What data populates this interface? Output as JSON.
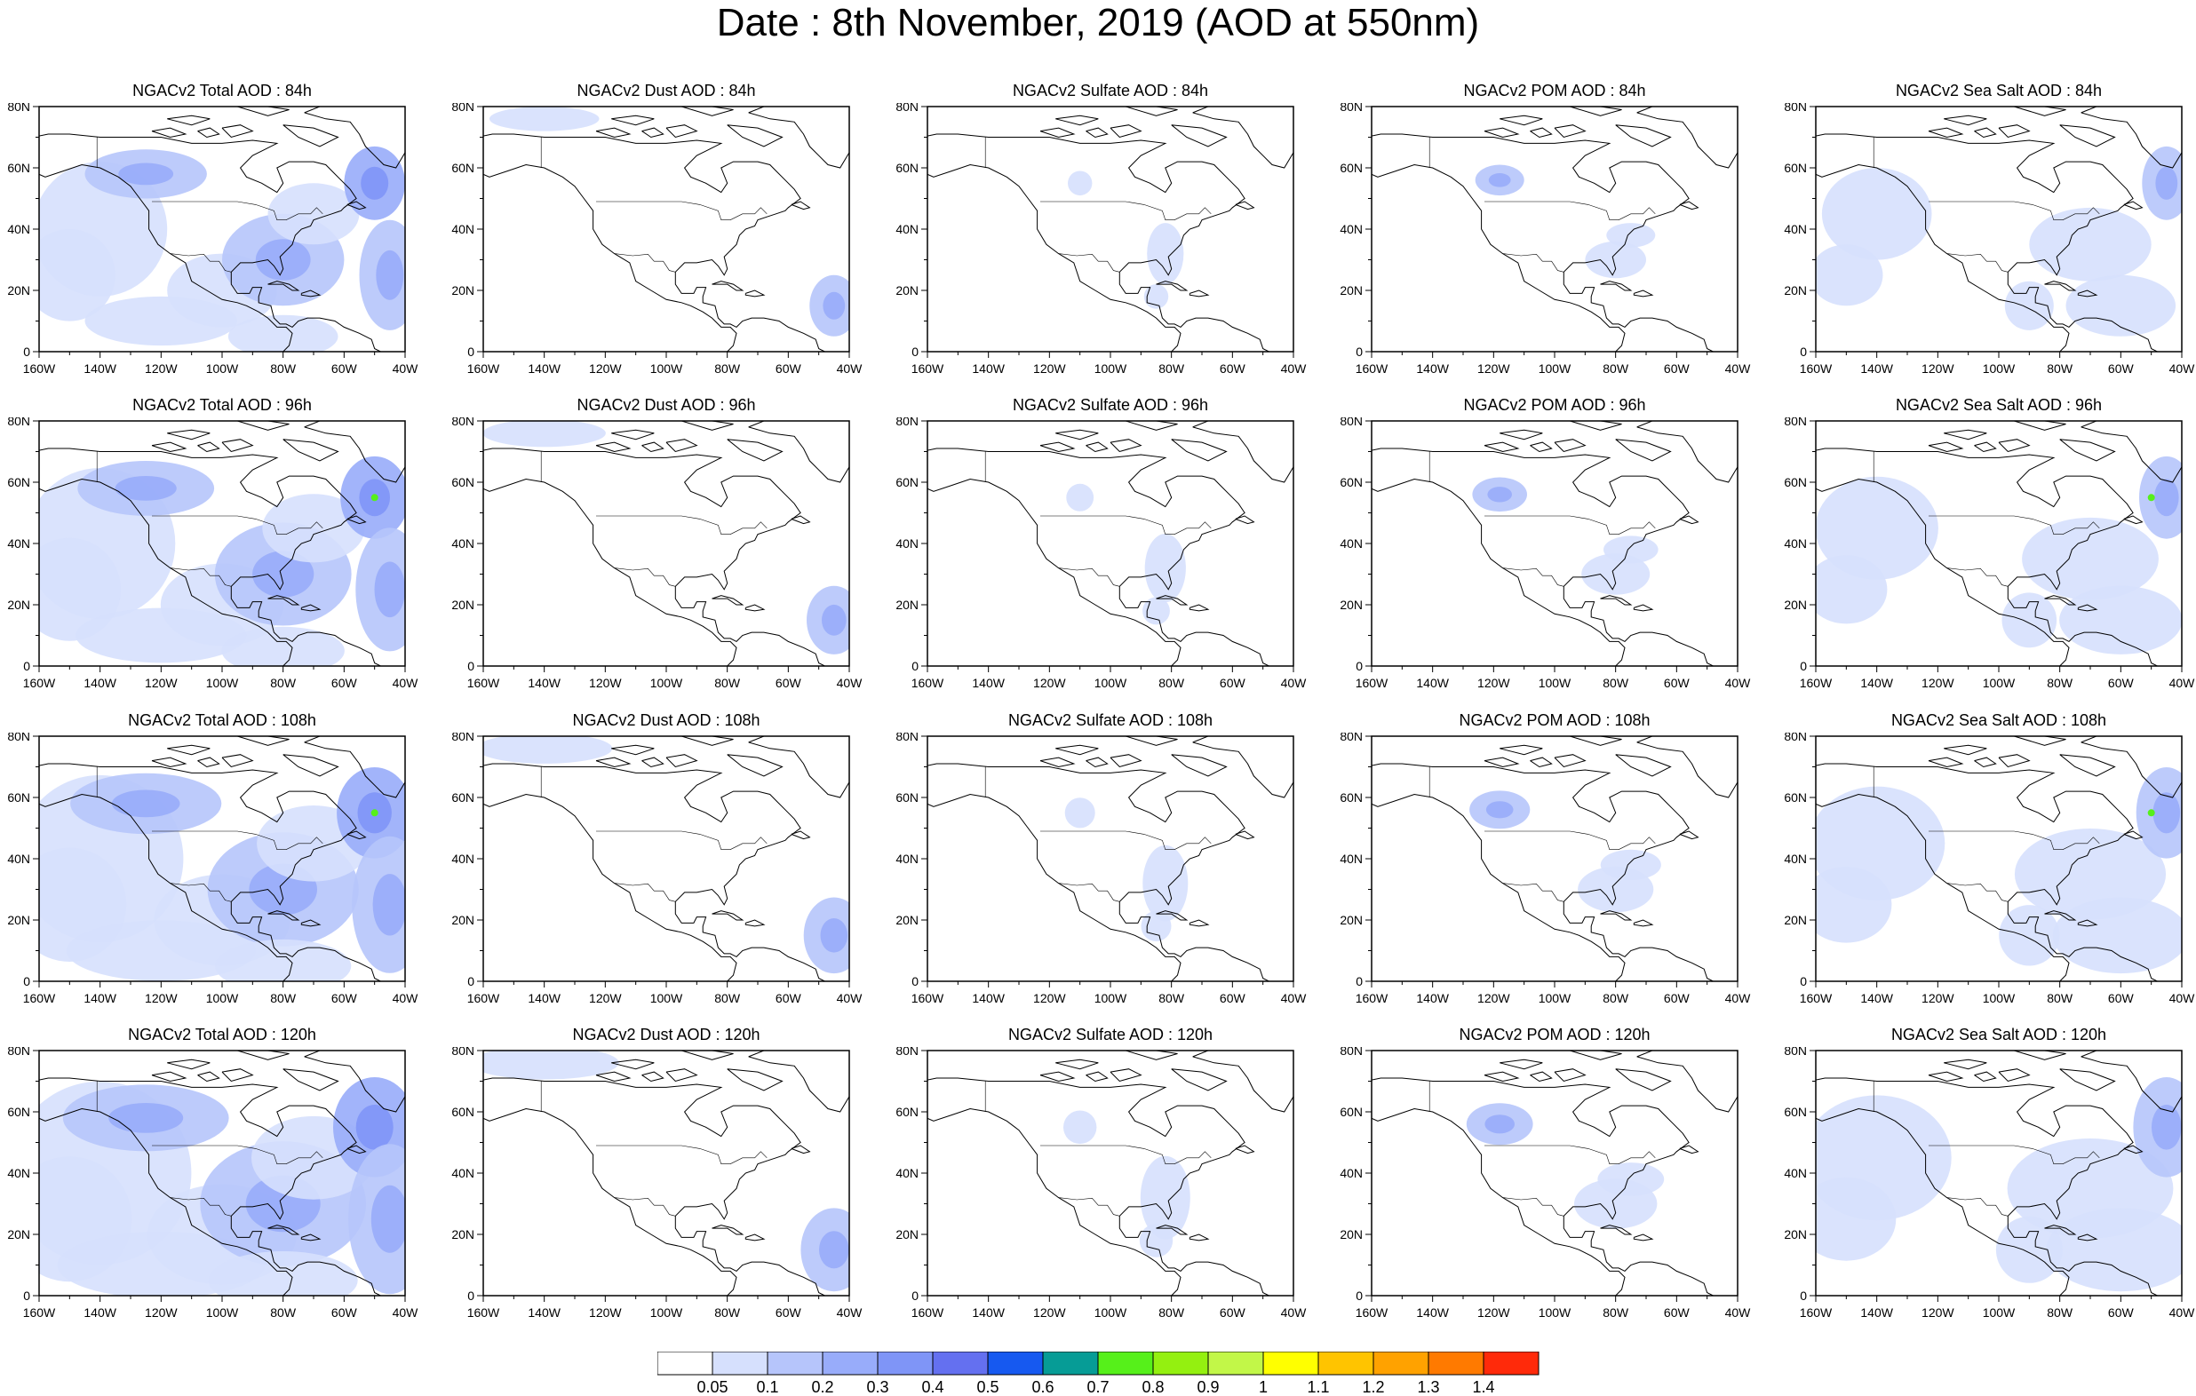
{
  "title": "Date : 8th November, 2019 (AOD at 550nm)",
  "panels": [
    [
      "NGACv2 Total AOD : 84h",
      "NGACv2 Dust AOD : 84h",
      "NGACv2 Sulfate AOD : 84h",
      "NGACv2 POM AOD : 84h",
      "NGACv2 Sea Salt AOD : 84h"
    ],
    [
      "NGACv2 Total AOD : 96h",
      "NGACv2 Dust AOD : 96h",
      "NGACv2 Sulfate AOD : 96h",
      "NGACv2 POM AOD : 96h",
      "NGACv2 Sea Salt AOD : 96h"
    ],
    [
      "NGACv2 Total AOD : 108h",
      "NGACv2 Dust AOD : 108h",
      "NGACv2 Sulfate AOD : 108h",
      "NGACv2 POM AOD : 108h",
      "NGACv2 Sea Salt AOD : 108h"
    ],
    [
      "NGACv2 Total AOD : 120h",
      "NGACv2 Dust AOD : 120h",
      "NGACv2 Sulfate AOD : 120h",
      "NGACv2 POM AOD : 120h",
      "NGACv2 Sea Salt  AOD : 120h"
    ]
  ],
  "axes": {
    "lon_labels": [
      "160W",
      "140W",
      "120W",
      "100W",
      "80W",
      "60W",
      "40W"
    ],
    "lat_labels": [
      "0",
      "20N",
      "40N",
      "60N",
      "80N"
    ]
  },
  "colorbar": {
    "colors": [
      "#ffffff",
      "#d6e0fd",
      "#b6c5fb",
      "#98acfa",
      "#7f95f7",
      "#6470f0",
      "#1659f0",
      "#069c96",
      "#56f01a",
      "#94f010",
      "#c2f748",
      "#ffff00",
      "#ffc400",
      "#ffa200",
      "#ff7a00",
      "#ff2a0a"
    ],
    "labels": [
      "0.05",
      "0.1",
      "0.2",
      "0.3",
      "0.4",
      "0.5",
      "0.6",
      "0.7",
      "0.8",
      "0.9",
      "1",
      "1.1",
      "1.2",
      "1.3",
      "1.4"
    ]
  }
}
